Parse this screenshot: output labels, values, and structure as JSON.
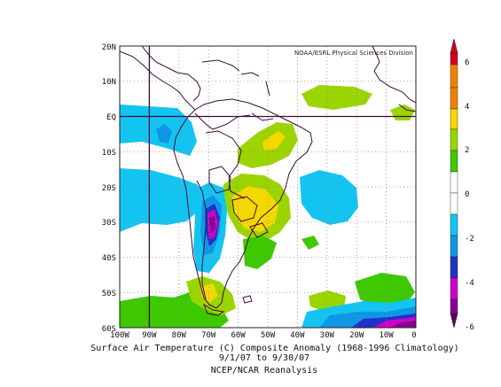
{
  "map": {
    "credit": "NOAA/ESRL Physical Sciences Division",
    "lat_labels": [
      "20N",
      "10N",
      "EQ",
      "10S",
      "20S",
      "30S",
      "40S",
      "50S",
      "60S"
    ],
    "lon_labels": [
      "100W",
      "90W",
      "80W",
      "70W",
      "60W",
      "50W",
      "40W",
      "30W",
      "20W",
      "10W",
      "0"
    ],
    "region": "South America",
    "extent": {
      "lon": [
        -100,
        0
      ],
      "lat": [
        -60,
        20
      ]
    },
    "gridlines": "dotted",
    "reference_lines": {
      "equator": true,
      "lon_90W": true
    }
  },
  "colorbar": {
    "ticks": [
      "6",
      "4",
      "2",
      "0",
      "-2",
      "-4",
      "-6"
    ],
    "colors": [
      "#d3001f",
      "#f08000",
      "#f4d800",
      "#9bd400",
      "#3ec800",
      "#ffffff",
      "#ffffff",
      "#14c4f0",
      "#1096e6",
      "#2030c8",
      "#d000c8",
      "#8a0090",
      "#5a0070"
    ]
  },
  "captions": {
    "line1": "Surface Air Temperature (C) Composite Anomaly (1968-1996 Climatology)",
    "line2": "9/1/07  to 9/30/07",
    "line3": "NCEP/NCAR Reanalysis"
  },
  "anomaly_palette": {
    "green_light": "#9bd400",
    "green": "#3ec800",
    "yellow": "#f4d800",
    "cyan": "#14c4f0",
    "blue": "#1096e6",
    "dark_blue": "#2030c8",
    "magenta": "#d000c8",
    "purple": "#8a0090",
    "coast": "#3c0c3c"
  }
}
